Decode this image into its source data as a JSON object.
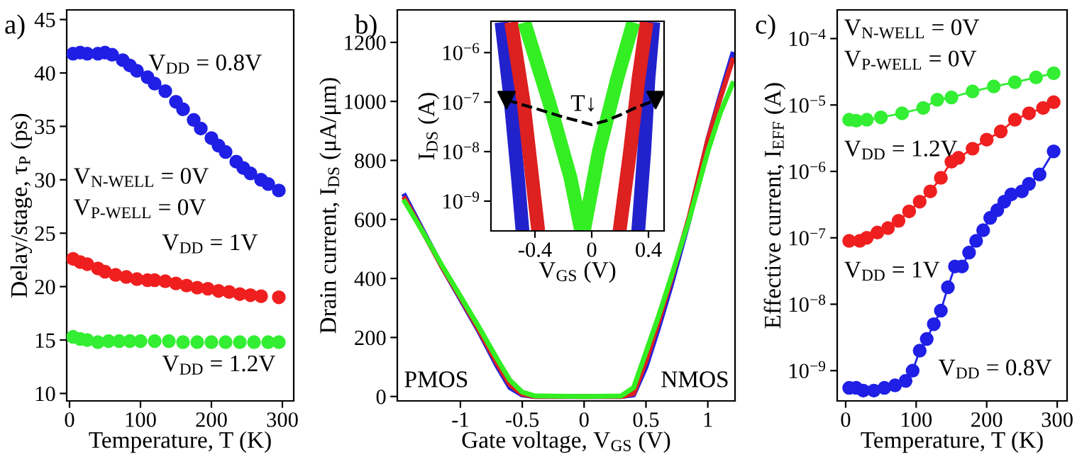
{
  "chart_data": [
    {
      "type": "scatter",
      "title": "a)",
      "xlabel": "Temperature, T (K)",
      "ylabel": "Delay/stage, τ$_{P}$ (ps)",
      "xlim": [
        -4,
        316
      ],
      "ylim": [
        9.3,
        45.9
      ],
      "xticks": [
        0,
        100,
        200,
        300
      ],
      "yticks": [
        10,
        15,
        20,
        25,
        30,
        35,
        40,
        45
      ],
      "grid": false,
      "legend": false,
      "marker": "circle",
      "line_style": "solid",
      "series": [
        {
          "color": "#1f1fe6",
          "x": [
            5,
            15,
            25,
            40,
            50,
            60,
            75,
            85,
            95,
            110,
            120,
            135,
            150,
            160,
            175,
            185,
            200,
            210,
            220,
            235,
            245,
            255,
            270,
            280,
            295
          ],
          "values": [
            41.8,
            41.9,
            41.8,
            41.8,
            41.9,
            41.7,
            41.2,
            40.7,
            40.2,
            39.6,
            39.0,
            38.3,
            37.3,
            36.6,
            35.6,
            34.8,
            33.9,
            33.2,
            32.6,
            31.7,
            31.1,
            30.6,
            30.0,
            29.6,
            29.0
          ]
        },
        {
          "color": "#f01f1f",
          "x": [
            5,
            15,
            25,
            40,
            50,
            65,
            80,
            95,
            110,
            120,
            135,
            150,
            165,
            180,
            195,
            210,
            225,
            240,
            255,
            270,
            295
          ],
          "values": [
            22.6,
            22.3,
            22.1,
            21.7,
            21.4,
            21.1,
            20.9,
            20.7,
            20.6,
            20.6,
            20.5,
            20.3,
            20.1,
            19.9,
            19.8,
            19.6,
            19.5,
            19.3,
            19.2,
            19.1,
            19.0
          ]
        },
        {
          "color": "#33ee33",
          "x": [
            5,
            15,
            25,
            40,
            55,
            70,
            85,
            100,
            120,
            140,
            160,
            180,
            200,
            220,
            240,
            260,
            280,
            295
          ],
          "values": [
            15.3,
            15.1,
            15.0,
            14.8,
            14.9,
            14.9,
            14.9,
            14.9,
            14.9,
            14.9,
            14.8,
            14.8,
            14.8,
            14.8,
            14.8,
            14.8,
            14.8,
            14.8
          ]
        }
      ],
      "annotations": [
        "V$_{DD}$ = 0.8V",
        "V$_{DD}$ = 1V",
        "V$_{DD}$ = 1.2V",
        "V$_{N-WELL}$ = 0V",
        "V$_{P-WELL}$ = 0V"
      ]
    },
    {
      "type": "line",
      "title": "b)",
      "xlabel": "Gate voltage, V$_{GS}$ (V)",
      "ylabel": "Drain current, I$_{DS}$ (μA/μm)",
      "xlim": [
        -1.51,
        1.22
      ],
      "ylim": [
        -15,
        1310
      ],
      "xticks": [
        -1,
        -0.5,
        0,
        0.5,
        1
      ],
      "yticks": [
        0,
        200,
        400,
        600,
        800,
        1000,
        1200
      ],
      "grid": false,
      "legend": false,
      "marker": "none",
      "line_style": "solid",
      "x": [
        -1.45,
        -1.3,
        -1.15,
        -1.0,
        -0.85,
        -0.7,
        -0.6,
        -0.5,
        -0.4,
        0,
        0.3,
        0.4,
        0.5,
        0.6,
        0.7,
        0.85,
        1.0,
        1.1,
        1.2
      ],
      "series": [
        {
          "color": "#2222dd",
          "values": [
            680,
            560,
            440,
            330,
            220,
            100,
            30,
            5,
            0,
            0,
            0,
            5,
            100,
            230,
            370,
            600,
            870,
            1020,
            1160
          ]
        },
        {
          "color": "#dd2020",
          "values": [
            670,
            555,
            440,
            335,
            225,
            110,
            40,
            8,
            0,
            0,
            0,
            10,
            120,
            250,
            390,
            610,
            870,
            1010,
            1140
          ]
        },
        {
          "color": "#33ee22",
          "values": [
            660,
            555,
            445,
            340,
            235,
            125,
            55,
            15,
            2,
            0,
            2,
            30,
            150,
            270,
            400,
            600,
            830,
            960,
            1060
          ]
        }
      ],
      "annotations": [
        "PMOS",
        "NMOS"
      ]
    },
    {
      "type": "line",
      "xlabel": "V$_{GS}$ (V)",
      "ylabel": "I$_{DS}$ (A)",
      "log": "y",
      "xlim": [
        -0.71,
        0.51
      ],
      "ylim": [
        2.5e-10,
        4.3e-06
      ],
      "xticks": [
        -0.4,
        0,
        0.4
      ],
      "yticks": [
        {
          "value": 1e-09,
          "label": "10$^{−9}$"
        },
        {
          "value": 1e-08,
          "label": "10$^{−8}$"
        },
        {
          "value": 1e-07,
          "label": "10$^{−7}$"
        },
        {
          "value": 1e-06,
          "label": "10$^{−6}$"
        }
      ],
      "grid": false,
      "legend": false,
      "marker": "none",
      "line_style": "solid",
      "series": [
        {
          "color": "#2222cc",
          "x": [
            -0.63,
            -0.57,
            -0.52,
            -0.49,
            null,
            0.33,
            0.37,
            0.4,
            0.43
          ],
          "values": [
            3e-06,
            1e-07,
            3e-09,
            3e-10,
            null,
            3e-10,
            1e-08,
            3e-07,
            3e-06
          ]
        },
        {
          "color": "#dd2020",
          "x": [
            -0.56,
            -0.48,
            -0.42,
            -0.38,
            null,
            0.2,
            0.27,
            0.33,
            0.38
          ],
          "values": [
            3e-06,
            1e-07,
            3e-09,
            3e-10,
            null,
            3e-10,
            1e-08,
            3e-07,
            3e-06
          ]
        },
        {
          "color": "#33ee22",
          "x": [
            -0.46,
            -0.3,
            -0.15,
            -0.08,
            null,
            -0.05,
            0.05,
            0.18,
            0.28
          ],
          "values": [
            3e-06,
            1e-07,
            3e-09,
            3e-10,
            null,
            3e-10,
            1e-08,
            3e-07,
            3e-06
          ]
        },
        {
          "color": "#000000",
          "line_style": "dashed",
          "x": [
            -0.6,
            -0.4,
            -0.2,
            -0.1,
            0,
            0.1,
            0.2,
            0.3,
            0.45
          ],
          "values": [
            1.1e-07,
            7.5e-08,
            5e-08,
            4.2e-08,
            3.5e-08,
            4.2e-08,
            5.5e-08,
            7.5e-08,
            1.1e-07
          ]
        },
        {
          "color": "#000000",
          "type": "scatter",
          "marker": "triangle",
          "x": [
            -0.6,
            0.45
          ],
          "values": [
            1.1e-07,
            1.1e-07
          ]
        }
      ],
      "annotations": [
        "T↓"
      ]
    },
    {
      "type": "line",
      "title": "c)",
      "xlabel": "Temperature, T (K)",
      "ylabel": "Effective current, I$_{EFF}$ (A)",
      "log": "y",
      "xlim": [
        -12,
        314
      ],
      "ylim": [
        3.5e-10,
        0.00027
      ],
      "xticks": [
        0,
        100,
        200,
        300
      ],
      "yticks": [
        {
          "value": 1e-09,
          "label": "10$^{−9}$"
        },
        {
          "value": 1e-08,
          "label": "10$^{−8}$"
        },
        {
          "value": 1e-07,
          "label": "10$^{−7}$"
        },
        {
          "value": 1e-06,
          "label": "10$^{−6}$"
        },
        {
          "value": 1e-05,
          "label": "10$^{−5}$"
        },
        {
          "value": 0.0001,
          "label": "10$^{−4}$"
        }
      ],
      "grid": false,
      "legend": false,
      "marker": "circle",
      "line_style": "solid",
      "series": [
        {
          "color": "#33ee33",
          "x": [
            5,
            15,
            30,
            50,
            80,
            110,
            130,
            150,
            180,
            210,
            240,
            270,
            295
          ],
          "values": [
            6e-06,
            5.8e-06,
            6e-06,
            6.5e-06,
            7.5e-06,
            9e-06,
            1.2e-05,
            1.3e-05,
            1.6e-05,
            1.9e-05,
            2.2e-05,
            2.6e-05,
            3e-05
          ]
        },
        {
          "color": "#f01f1f",
          "x": [
            5,
            20,
            30,
            45,
            60,
            75,
            90,
            105,
            120,
            135,
            150,
            160,
            180,
            200,
            220,
            240,
            260,
            280,
            295
          ],
          "values": [
            9e-08,
            9e-08,
            1e-07,
            1.2e-07,
            1.4e-07,
            1.8e-07,
            2.5e-07,
            3.5e-07,
            5e-07,
            8e-07,
            1.4e-06,
            1.6e-06,
            2.2e-06,
            3e-06,
            4e-06,
            6e-06,
            7.5e-06,
            9e-06,
            1.1e-05
          ]
        },
        {
          "color": "#1f1fe6",
          "x": [
            5,
            15,
            25,
            40,
            55,
            70,
            85,
            95,
            105,
            115,
            125,
            135,
            145,
            155,
            165,
            175,
            185,
            195,
            205,
            215,
            225,
            235,
            250,
            260,
            275,
            295
          ],
          "values": [
            5.5e-10,
            5.5e-10,
            5e-10,
            5e-10,
            5.5e-10,
            6e-10,
            7e-10,
            1e-09,
            2e-09,
            3e-09,
            5e-09,
            8e-09,
            1.8e-08,
            3.7e-08,
            3.7e-08,
            6e-08,
            9e-08,
            1.3e-07,
            2e-07,
            2.6e-07,
            3.5e-07,
            4.5e-07,
            5e-07,
            6.5e-07,
            9e-07,
            2e-06
          ]
        }
      ],
      "annotations": [
        "V$_{N-WELL}$ = 0V",
        "V$_{P-WELL}$ = 0V",
        "V$_{DD}$ = 1.2V",
        "V$_{DD}$ = 1V",
        "V$_{DD}$ = 0.8V"
      ]
    }
  ]
}
